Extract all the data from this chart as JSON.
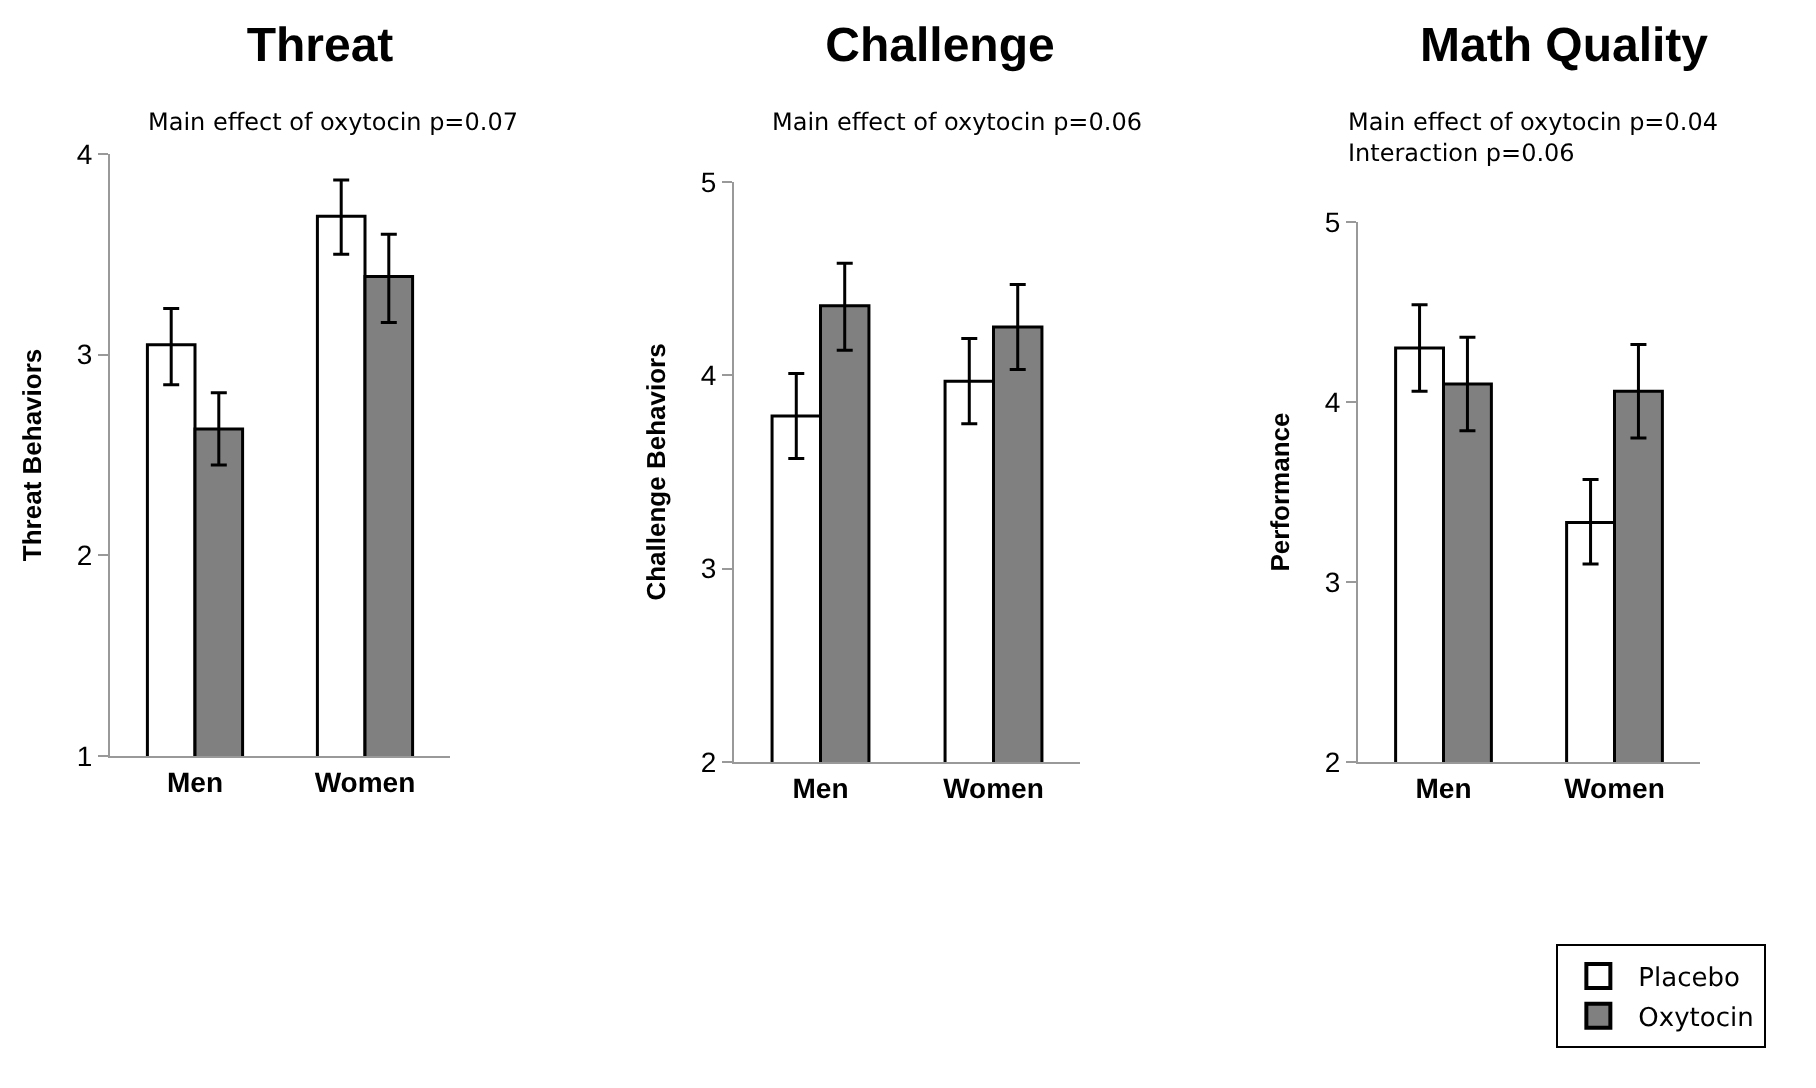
{
  "chart_data": [
    {
      "type": "bar",
      "title": "Threat",
      "subtitle": "Main effect of oxytocin p=0.07",
      "ylabel": "Threat Behaviors",
      "categories": [
        "Men",
        "Women"
      ],
      "ylim": [
        1,
        4
      ],
      "yticks": [
        1,
        2,
        3,
        4
      ],
      "grid": false,
      "legend": false,
      "series": [
        {
          "color": "#ffffff",
          "values": [
            3.05,
            3.69
          ],
          "errors": [
            [
              2.85,
              3.23
            ],
            [
              3.5,
              3.87
            ]
          ]
        },
        {
          "color": "#808080",
          "values": [
            2.63,
            3.39
          ],
          "errors": [
            [
              2.45,
              2.81
            ],
            [
              3.16,
              3.6
            ]
          ]
        }
      ]
    },
    {
      "type": "bar",
      "title": "Challenge",
      "subtitle": "Main effect of oxytocin p=0.06",
      "ylabel": "Challenge Behaviors",
      "categories": [
        "Men",
        "Women"
      ],
      "ylim": [
        2,
        5
      ],
      "yticks": [
        2,
        3,
        4,
        5
      ],
      "grid": false,
      "legend": false,
      "series": [
        {
          "color": "#ffffff",
          "values": [
            3.79,
            3.97
          ],
          "errors": [
            [
              3.57,
              4.01
            ],
            [
              3.75,
              4.19
            ]
          ]
        },
        {
          "color": "#808080",
          "values": [
            4.36,
            4.25
          ],
          "errors": [
            [
              4.13,
              4.58
            ],
            [
              4.03,
              4.47
            ]
          ]
        }
      ]
    },
    {
      "type": "bar",
      "title": "Math Quality",
      "subtitle": "Main effect of oxytocin p=0.04\nInteraction p=0.06",
      "ylabel": "Performance",
      "categories": [
        "Men",
        "Women"
      ],
      "ylim": [
        2,
        5
      ],
      "yticks": [
        2,
        3,
        4,
        5
      ],
      "grid": false,
      "legend": "bottom right",
      "series": [
        {
          "name": "Placebo",
          "color": "#ffffff",
          "values": [
            4.3,
            3.33
          ],
          "errors": [
            [
              4.06,
              4.54
            ],
            [
              3.1,
              3.57
            ]
          ]
        },
        {
          "name": "Oxytocin",
          "color": "#808080",
          "values": [
            4.1,
            4.06
          ],
          "errors": [
            [
              3.84,
              4.36
            ],
            [
              3.8,
              4.32
            ]
          ]
        }
      ]
    }
  ]
}
